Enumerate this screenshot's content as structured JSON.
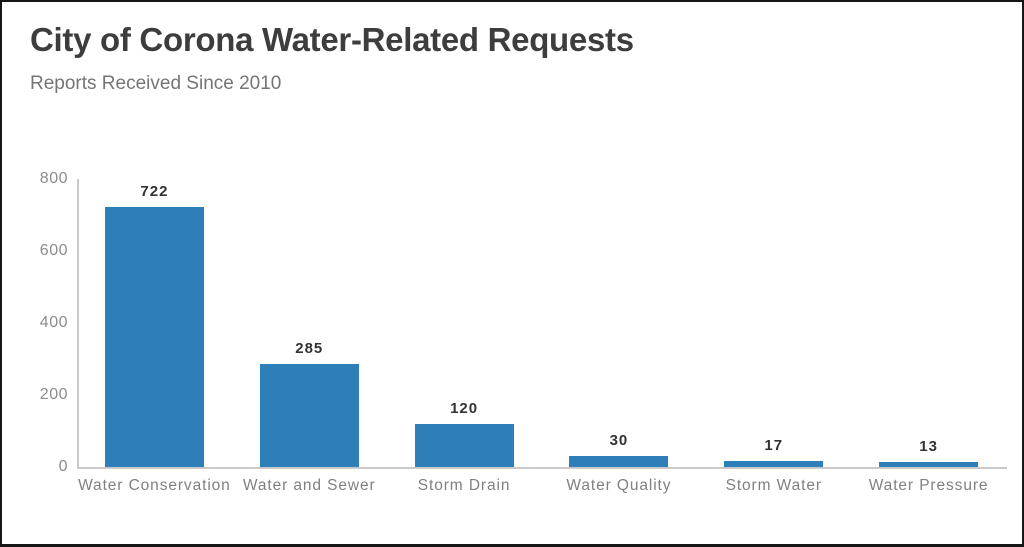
{
  "chart_data": {
    "type": "bar",
    "title": "City of Corona Water-Related Requests",
    "subtitle": "Reports Received Since 2010",
    "categories": [
      "Water Conservation",
      "Water and Sewer",
      "Storm Drain",
      "Water Quality",
      "Storm Water",
      "Water Pressure"
    ],
    "values": [
      722,
      285,
      120,
      30,
      17,
      13
    ],
    "xlabel": "",
    "ylabel": "",
    "ylim": [
      0,
      800
    ],
    "yticks": [
      0,
      200,
      400,
      600,
      800
    ],
    "grid": false,
    "legend": false,
    "colors": {
      "bar": "#2e7eb8",
      "title": "#3d3d3d",
      "subtitle": "#757575",
      "axis_labels": "#8c8c8c",
      "category_labels": "#808080",
      "value_labels": "#333333",
      "axis_lines": "#c9c9c9",
      "frame_border": "#161616"
    }
  }
}
